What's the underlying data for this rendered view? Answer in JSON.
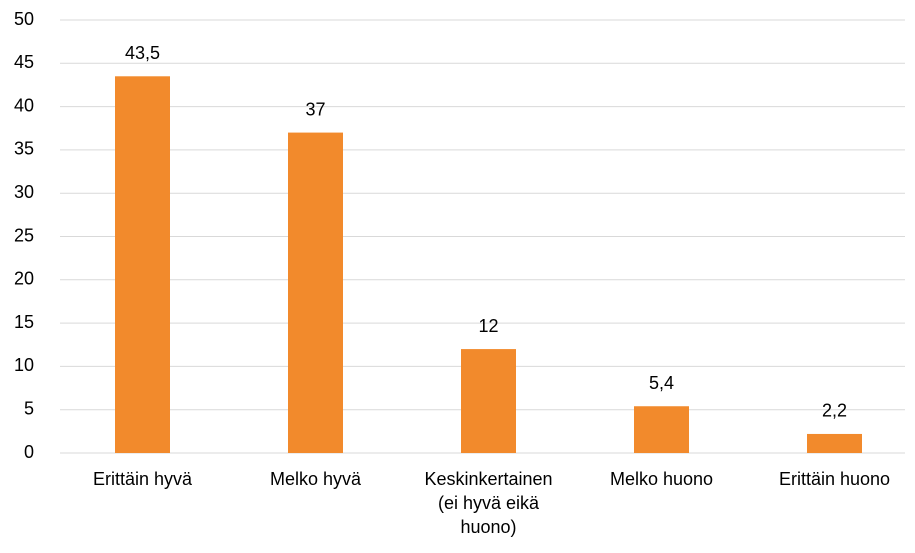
{
  "chart_data": {
    "type": "bar",
    "categories": [
      "Erittäin hyvä",
      "Melko hyvä",
      "Keskinkertainen (ei hyvä eikä huono)",
      "Melko huono",
      "Erittäin huono"
    ],
    "values": [
      43.5,
      37,
      12,
      5.4,
      2.2
    ],
    "value_labels": [
      "43,5",
      "37",
      "12",
      "5,4",
      "2,2"
    ],
    "color": "#f28a2c",
    "ylim": [
      0,
      50
    ],
    "yticks": [
      0,
      5,
      10,
      15,
      20,
      25,
      30,
      35,
      40,
      45,
      50
    ],
    "grid": true
  }
}
